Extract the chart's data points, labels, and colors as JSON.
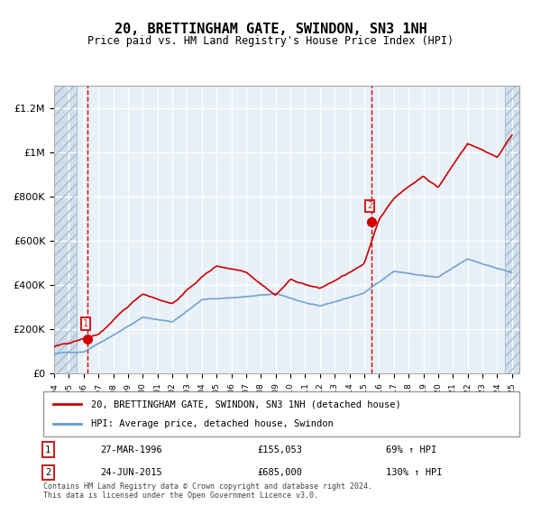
{
  "title": "20, BRETTINGHAM GATE, SWINDON, SN3 1NH",
  "subtitle": "Price paid vs. HM Land Registry's House Price Index (HPI)",
  "xlabel": "",
  "ylabel": "",
  "ylim": [
    0,
    1300000
  ],
  "yticks": [
    0,
    200000,
    400000,
    600000,
    800000,
    1000000,
    1200000
  ],
  "ytick_labels": [
    "£0",
    "£200K",
    "£400K",
    "£600K",
    "£800K",
    "£1M",
    "£1.2M"
  ],
  "purchase1_date": 1996.23,
  "purchase1_price": 155053,
  "purchase2_date": 2015.48,
  "purchase2_price": 685000,
  "legend_line1": "20, BRETTINGHAM GATE, SWINDON, SN3 1NH (detached house)",
  "legend_line2": "HPI: Average price, detached house, Swindon",
  "table_row1_num": "1",
  "table_row1_date": "27-MAR-1996",
  "table_row1_price": "£155,053",
  "table_row1_hpi": "69% ↑ HPI",
  "table_row2_num": "2",
  "table_row2_date": "24-JUN-2015",
  "table_row2_price": "£685,000",
  "table_row2_hpi": "130% ↑ HPI",
  "footer": "Contains HM Land Registry data © Crown copyright and database right 2024.\nThis data is licensed under the Open Government Licence v3.0.",
  "hatch_color": "#c8d8e8",
  "bg_color": "#dce8f5",
  "plot_bg": "#e8f0f8",
  "grid_color": "#ffffff",
  "red_line_color": "#cc0000",
  "blue_line_color": "#6699cc",
  "dot_color": "#cc0000",
  "vline_color": "#cc0000",
  "box_color": "#cc2222"
}
